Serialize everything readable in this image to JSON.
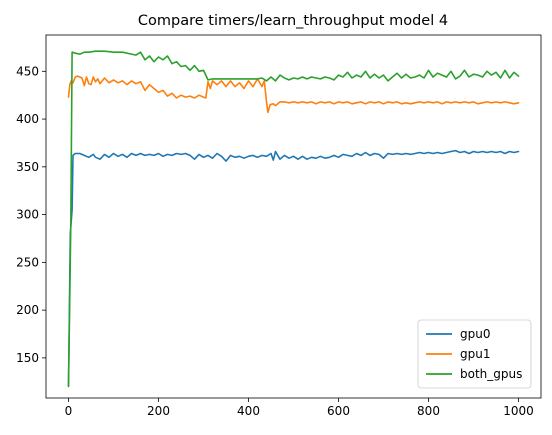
{
  "chart_data": {
    "type": "line",
    "title": "Compare timers/learn_throughput model 4",
    "xlabel": "",
    "ylabel": "",
    "xlim": [
      -50,
      1050
    ],
    "ylim": [
      108,
      488
    ],
    "xticks": [
      0,
      200,
      400,
      600,
      800,
      1000
    ],
    "yticks": [
      150,
      200,
      250,
      300,
      350,
      400,
      450
    ],
    "xtick_labels": [
      "0",
      "200",
      "400",
      "600",
      "800",
      "1000"
    ],
    "ytick_labels": [
      "150",
      "200",
      "250",
      "300",
      "350",
      "400",
      "450"
    ],
    "grid": false,
    "legend_position": "lower-right",
    "series": [
      {
        "name": "gpu0",
        "color": "#1f77b4",
        "points": [
          [
            0,
            121
          ],
          [
            4,
            280
          ],
          [
            8,
            305
          ],
          [
            10,
            362
          ],
          [
            15,
            364
          ],
          [
            25,
            364
          ],
          [
            35,
            362
          ],
          [
            45,
            360
          ],
          [
            55,
            363
          ],
          [
            60,
            360
          ],
          [
            70,
            358
          ],
          [
            80,
            363
          ],
          [
            90,
            360
          ],
          [
            100,
            364
          ],
          [
            110,
            361
          ],
          [
            120,
            363
          ],
          [
            130,
            360
          ],
          [
            140,
            364
          ],
          [
            150,
            362
          ],
          [
            160,
            364
          ],
          [
            170,
            362
          ],
          [
            180,
            363
          ],
          [
            190,
            362
          ],
          [
            200,
            364
          ],
          [
            210,
            361
          ],
          [
            220,
            363
          ],
          [
            230,
            362
          ],
          [
            240,
            364
          ],
          [
            250,
            363
          ],
          [
            260,
            364
          ],
          [
            270,
            362
          ],
          [
            280,
            358
          ],
          [
            290,
            363
          ],
          [
            300,
            360
          ],
          [
            310,
            362
          ],
          [
            320,
            359
          ],
          [
            330,
            364
          ],
          [
            340,
            361
          ],
          [
            350,
            356
          ],
          [
            360,
            362
          ],
          [
            370,
            360
          ],
          [
            380,
            361
          ],
          [
            390,
            359
          ],
          [
            400,
            361
          ],
          [
            410,
            362
          ],
          [
            420,
            360
          ],
          [
            430,
            362
          ],
          [
            440,
            361
          ],
          [
            450,
            364
          ],
          [
            455,
            357
          ],
          [
            460,
            366
          ],
          [
            470,
            358
          ],
          [
            480,
            362
          ],
          [
            490,
            359
          ],
          [
            500,
            361
          ],
          [
            510,
            358
          ],
          [
            520,
            361
          ],
          [
            530,
            358
          ],
          [
            540,
            360
          ],
          [
            550,
            359
          ],
          [
            560,
            361
          ],
          [
            570,
            359
          ],
          [
            580,
            360
          ],
          [
            590,
            362
          ],
          [
            600,
            360
          ],
          [
            610,
            363
          ],
          [
            620,
            362
          ],
          [
            630,
            361
          ],
          [
            640,
            364
          ],
          [
            650,
            362
          ],
          [
            660,
            365
          ],
          [
            670,
            362
          ],
          [
            680,
            364
          ],
          [
            690,
            363
          ],
          [
            700,
            359
          ],
          [
            710,
            364
          ],
          [
            720,
            363
          ],
          [
            730,
            364
          ],
          [
            740,
            363
          ],
          [
            750,
            364
          ],
          [
            760,
            363
          ],
          [
            770,
            364
          ],
          [
            780,
            365
          ],
          [
            790,
            364
          ],
          [
            800,
            365
          ],
          [
            810,
            364
          ],
          [
            820,
            365
          ],
          [
            830,
            364
          ],
          [
            840,
            365
          ],
          [
            850,
            366
          ],
          [
            860,
            367
          ],
          [
            870,
            365
          ],
          [
            880,
            366
          ],
          [
            890,
            364
          ],
          [
            900,
            366
          ],
          [
            910,
            365
          ],
          [
            920,
            366
          ],
          [
            930,
            365
          ],
          [
            940,
            366
          ],
          [
            950,
            365
          ],
          [
            960,
            366
          ],
          [
            970,
            364
          ],
          [
            980,
            366
          ],
          [
            990,
            365
          ],
          [
            1000,
            366
          ]
        ]
      },
      {
        "name": "gpu1",
        "color": "#ff7f0e",
        "points": [
          [
            0,
            423
          ],
          [
            3,
            436
          ],
          [
            6,
            440
          ],
          [
            10,
            438
          ],
          [
            15,
            444
          ],
          [
            20,
            445
          ],
          [
            25,
            444
          ],
          [
            30,
            443
          ],
          [
            35,
            435
          ],
          [
            40,
            444
          ],
          [
            45,
            437
          ],
          [
            50,
            436
          ],
          [
            55,
            444
          ],
          [
            60,
            439
          ],
          [
            65,
            442
          ],
          [
            70,
            437
          ],
          [
            80,
            443
          ],
          [
            90,
            438
          ],
          [
            100,
            441
          ],
          [
            110,
            438
          ],
          [
            120,
            440
          ],
          [
            130,
            436
          ],
          [
            140,
            440
          ],
          [
            150,
            437
          ],
          [
            160,
            439
          ],
          [
            170,
            430
          ],
          [
            180,
            436
          ],
          [
            190,
            432
          ],
          [
            200,
            428
          ],
          [
            210,
            430
          ],
          [
            220,
            424
          ],
          [
            230,
            427
          ],
          [
            240,
            422
          ],
          [
            250,
            425
          ],
          [
            260,
            423
          ],
          [
            270,
            424
          ],
          [
            280,
            422
          ],
          [
            290,
            425
          ],
          [
            300,
            423
          ],
          [
            305,
            422
          ],
          [
            310,
            439
          ],
          [
            315,
            432
          ],
          [
            320,
            440
          ],
          [
            330,
            436
          ],
          [
            340,
            440
          ],
          [
            350,
            434
          ],
          [
            360,
            440
          ],
          [
            370,
            434
          ],
          [
            380,
            438
          ],
          [
            390,
            432
          ],
          [
            400,
            440
          ],
          [
            410,
            434
          ],
          [
            420,
            442
          ],
          [
            430,
            434
          ],
          [
            435,
            440
          ],
          [
            440,
            418
          ],
          [
            443,
            407
          ],
          [
            448,
            415
          ],
          [
            455,
            416
          ],
          [
            460,
            414
          ],
          [
            470,
            418
          ],
          [
            480,
            418
          ],
          [
            490,
            417
          ],
          [
            500,
            418
          ],
          [
            510,
            417
          ],
          [
            520,
            418
          ],
          [
            530,
            417
          ],
          [
            540,
            418
          ],
          [
            550,
            416
          ],
          [
            560,
            418
          ],
          [
            570,
            417
          ],
          [
            580,
            418
          ],
          [
            590,
            416
          ],
          [
            600,
            418
          ],
          [
            610,
            417
          ],
          [
            620,
            418
          ],
          [
            630,
            416
          ],
          [
            640,
            417
          ],
          [
            650,
            418
          ],
          [
            660,
            416
          ],
          [
            670,
            418
          ],
          [
            680,
            417
          ],
          [
            690,
            418
          ],
          [
            700,
            416
          ],
          [
            710,
            418
          ],
          [
            720,
            417
          ],
          [
            730,
            418
          ],
          [
            740,
            416
          ],
          [
            750,
            417
          ],
          [
            760,
            416
          ],
          [
            770,
            417
          ],
          [
            780,
            418
          ],
          [
            790,
            417
          ],
          [
            800,
            418
          ],
          [
            810,
            417
          ],
          [
            820,
            418
          ],
          [
            830,
            416
          ],
          [
            840,
            418
          ],
          [
            850,
            417
          ],
          [
            860,
            418
          ],
          [
            870,
            417
          ],
          [
            880,
            418
          ],
          [
            890,
            417
          ],
          [
            900,
            418
          ],
          [
            910,
            416
          ],
          [
            920,
            417
          ],
          [
            930,
            418
          ],
          [
            940,
            417
          ],
          [
            950,
            418
          ],
          [
            960,
            417
          ],
          [
            970,
            418
          ],
          [
            980,
            417
          ],
          [
            990,
            416
          ],
          [
            1000,
            417
          ]
        ]
      },
      {
        "name": "both_gpus",
        "color": "#2ca02c",
        "points": [
          [
            0,
            120
          ],
          [
            5,
            290
          ],
          [
            8,
            470
          ],
          [
            15,
            469
          ],
          [
            25,
            468
          ],
          [
            35,
            470
          ],
          [
            45,
            470
          ],
          [
            60,
            471
          ],
          [
            80,
            471
          ],
          [
            100,
            470
          ],
          [
            120,
            470
          ],
          [
            140,
            468
          ],
          [
            150,
            467
          ],
          [
            160,
            470
          ],
          [
            170,
            462
          ],
          [
            180,
            466
          ],
          [
            190,
            460
          ],
          [
            200,
            465
          ],
          [
            210,
            462
          ],
          [
            220,
            466
          ],
          [
            230,
            458
          ],
          [
            240,
            460
          ],
          [
            250,
            455
          ],
          [
            260,
            456
          ],
          [
            270,
            451
          ],
          [
            280,
            456
          ],
          [
            290,
            450
          ],
          [
            300,
            451
          ],
          [
            310,
            441
          ],
          [
            320,
            442
          ],
          [
            340,
            442
          ],
          [
            360,
            442
          ],
          [
            380,
            442
          ],
          [
            400,
            442
          ],
          [
            420,
            442
          ],
          [
            430,
            443
          ],
          [
            440,
            440
          ],
          [
            450,
            444
          ],
          [
            460,
            440
          ],
          [
            470,
            446
          ],
          [
            480,
            443
          ],
          [
            490,
            441
          ],
          [
            500,
            443
          ],
          [
            510,
            442
          ],
          [
            520,
            444
          ],
          [
            530,
            442
          ],
          [
            540,
            444
          ],
          [
            550,
            443
          ],
          [
            560,
            442
          ],
          [
            570,
            444
          ],
          [
            580,
            443
          ],
          [
            590,
            441
          ],
          [
            600,
            446
          ],
          [
            610,
            444
          ],
          [
            620,
            449
          ],
          [
            630,
            443
          ],
          [
            640,
            446
          ],
          [
            650,
            444
          ],
          [
            660,
            450
          ],
          [
            670,
            443
          ],
          [
            680,
            447
          ],
          [
            690,
            443
          ],
          [
            700,
            446
          ],
          [
            710,
            440
          ],
          [
            720,
            444
          ],
          [
            730,
            448
          ],
          [
            740,
            443
          ],
          [
            750,
            447
          ],
          [
            760,
            443
          ],
          [
            770,
            444
          ],
          [
            780,
            446
          ],
          [
            790,
            443
          ],
          [
            800,
            451
          ],
          [
            810,
            444
          ],
          [
            820,
            448
          ],
          [
            830,
            446
          ],
          [
            840,
            444
          ],
          [
            850,
            450
          ],
          [
            860,
            442
          ],
          [
            870,
            445
          ],
          [
            880,
            451
          ],
          [
            890,
            444
          ],
          [
            900,
            447
          ],
          [
            910,
            446
          ],
          [
            920,
            444
          ],
          [
            930,
            450
          ],
          [
            940,
            446
          ],
          [
            950,
            449
          ],
          [
            960,
            443
          ],
          [
            970,
            451
          ],
          [
            980,
            443
          ],
          [
            990,
            449
          ],
          [
            1000,
            445
          ]
        ]
      }
    ]
  }
}
